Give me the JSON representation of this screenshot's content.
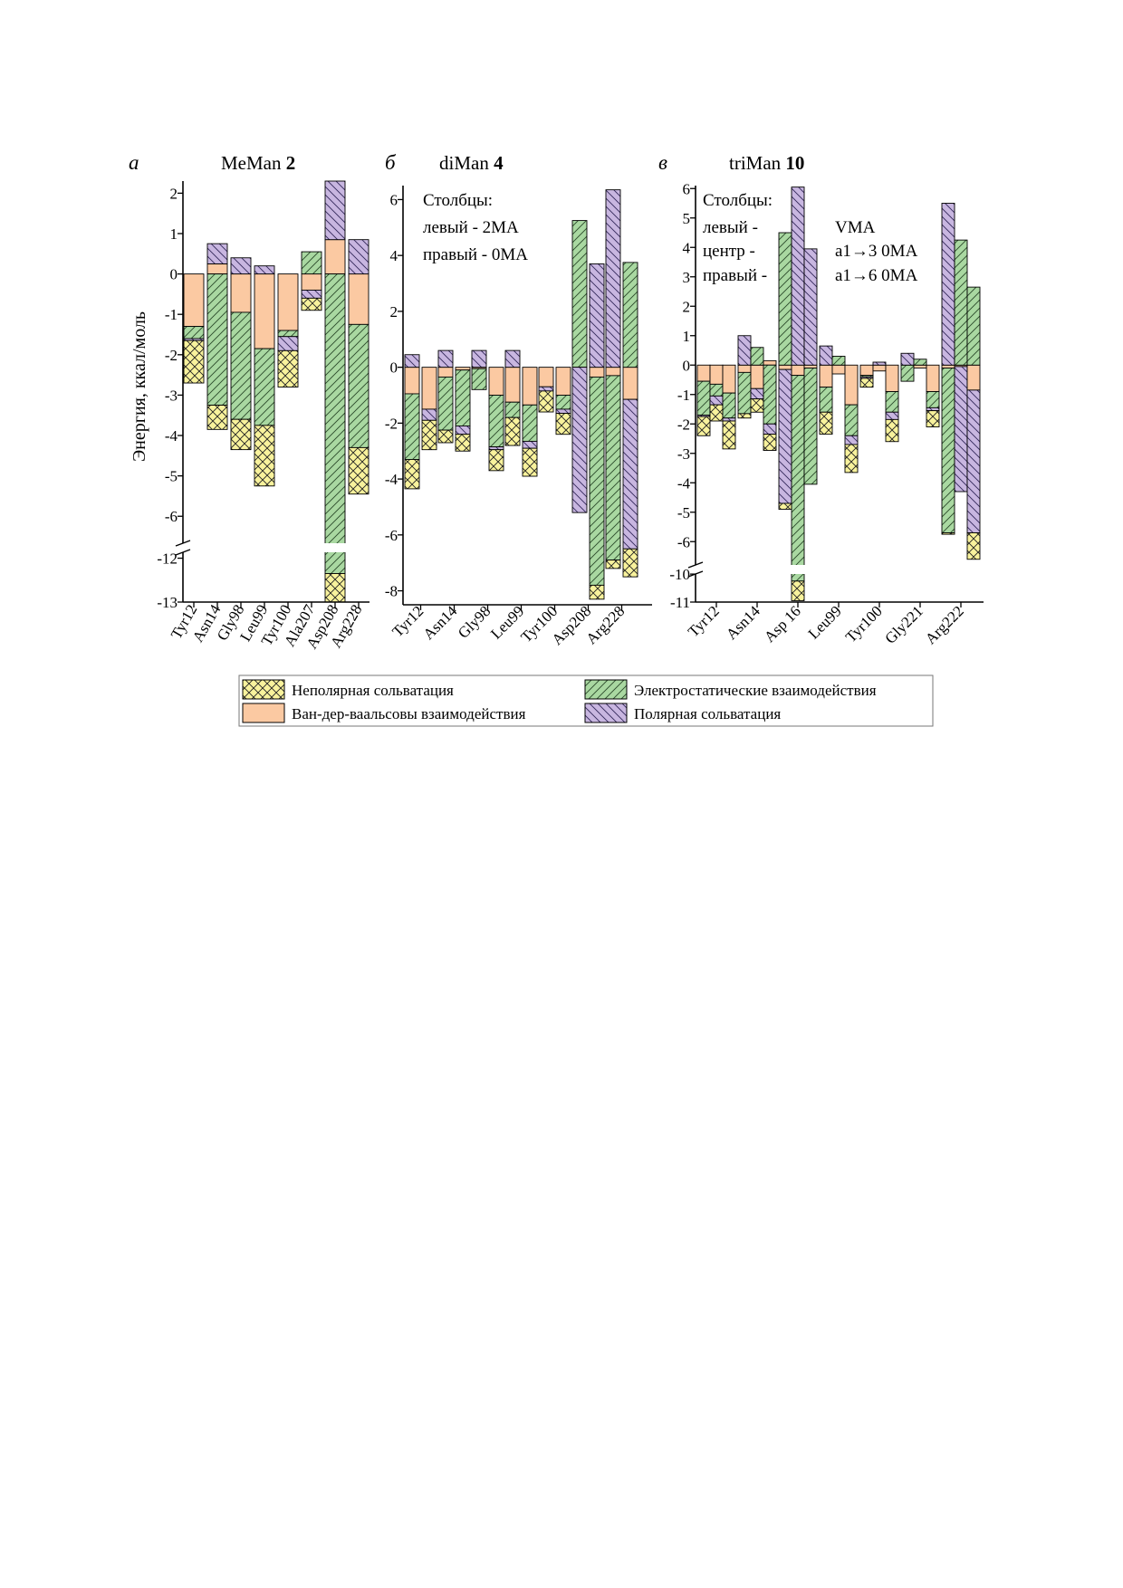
{
  "legend": [
    {
      "key": "nonpolar",
      "label": "Неполярная сольватация",
      "color": "#f8f29c",
      "pattern": "crosshatch"
    },
    {
      "key": "electro",
      "label": "Электростатические взаимодействия",
      "color": "#a9d8a1",
      "pattern": "diag-up"
    },
    {
      "key": "vdw",
      "label": "Ван-дер-ваальсовы взаимодействия",
      "color": "#fbc9a2",
      "pattern": "none"
    },
    {
      "key": "polar",
      "label": "Полярная сольватация",
      "color": "#c8b6e0",
      "pattern": "diag-down"
    }
  ],
  "ylabel": "Энергия, ккал/моль",
  "chart_data": [
    {
      "type": "bar",
      "panel": "а",
      "title": "MeMan",
      "title_bold": "2",
      "ylabel": "Энергия, ккал/моль",
      "ylim": [
        -13,
        2.3
      ],
      "axis_break": [
        -6.6,
        -11.7
      ],
      "yticks": [
        "2",
        "1",
        "0",
        "-1",
        "-2",
        "-3",
        "-4",
        "-5",
        "-6",
        "-12",
        "-13"
      ],
      "categories": [
        "Tyr12",
        "Asn14",
        "Gly98",
        "Leu99",
        "Tyr100",
        "Ala207",
        "Asp208",
        "Arg228"
      ],
      "bars_per_category": 1,
      "bars": [
        {
          "category": "Tyr12",
          "vdw": -1.3,
          "electro": -0.3,
          "polar": -0.05,
          "nonpolar": -1.05
        },
        {
          "category": "Asn14",
          "vdw": 0.25,
          "polar": 0.5,
          "electro": -3.25,
          "nonpolar": -0.6
        },
        {
          "category": "Gly98",
          "vdw": -0.95,
          "electro": -2.65,
          "polar": 0.4,
          "nonpolar": -0.75
        },
        {
          "category": "Leu99",
          "vdw": -1.85,
          "electro": -1.9,
          "polar": 0.2,
          "nonpolar": -1.5
        },
        {
          "category": "Tyr100",
          "vdw": -1.4,
          "electro": -0.15,
          "polar": -0.35,
          "nonpolar": -0.9
        },
        {
          "category": "Ala207",
          "electro": 0.55,
          "vdw": -0.4,
          "polar": -0.2,
          "nonpolar": -0.3
        },
        {
          "category": "Asp208",
          "vdw": 0.85,
          "polar": 1.45,
          "electro": -12.35,
          "nonpolar": -0.65
        },
        {
          "category": "Arg228",
          "polar": 0.85,
          "vdw": -1.25,
          "electro": -3.05,
          "nonpolar": -1.15
        }
      ]
    },
    {
      "type": "bar",
      "panel": "б",
      "title": "diMan",
      "title_bold": "4",
      "ylim": [
        -8.5,
        6.5
      ],
      "yticks": [
        "6",
        "4",
        "2",
        "0",
        "-2",
        "-4",
        "-6",
        "-8"
      ],
      "categories": [
        "Tyr12",
        "Asn14",
        "Gly98",
        "Leu99",
        "Tyr100",
        "Asp208",
        "Arg228"
      ],
      "bars_per_category": 2,
      "annotation": [
        "Столбцы:",
        "левый - 2MA",
        "правый - 0MA"
      ],
      "bars": [
        {
          "category": "Tyr12",
          "vdw": -0.95,
          "electro": -2.35,
          "polar": 0.45,
          "nonpolar": -1.05
        },
        {
          "category": "Tyr12",
          "vdw": -1.5,
          "polar": -0.4,
          "electro": 0,
          "nonpolar": -1.05
        },
        {
          "category": "Asn14",
          "vdw": -0.35,
          "electro": -1.9,
          "polar": 0.6,
          "nonpolar": -0.45
        },
        {
          "category": "Asn14",
          "vdw": -0.1,
          "electro": -2.0,
          "polar": -0.3,
          "nonpolar": -0.6
        },
        {
          "category": "Gly98",
          "vdw": -0.05,
          "electro": -0.75,
          "polar": 0.6,
          "nonpolar": 0
        },
        {
          "category": "Gly98",
          "vdw": -1.0,
          "electro": -1.85,
          "polar": -0.1,
          "nonpolar": -0.75
        },
        {
          "category": "Leu99",
          "vdw": -1.25,
          "electro": -0.55,
          "polar": 0.6,
          "nonpolar": -1.0
        },
        {
          "category": "Leu99",
          "vdw": -1.35,
          "electro": -1.3,
          "polar": -0.25,
          "nonpolar": -1.0
        },
        {
          "category": "Tyr100",
          "vdw": -0.7,
          "polar": -0.15,
          "nonpolar": -0.75,
          "electro": 0
        },
        {
          "category": "Tyr100",
          "vdw": -1.0,
          "electro": -0.5,
          "polar": -0.15,
          "nonpolar": -0.75
        },
        {
          "category": "Asp208",
          "electro": 5.25,
          "polar": -5.2,
          "vdw": 0,
          "nonpolar": 0
        },
        {
          "category": "Asp208",
          "polar": 3.7,
          "vdw": -0.35,
          "electro": -7.45,
          "nonpolar": -0.5
        },
        {
          "category": "Arg228",
          "polar": 6.35,
          "vdw": -0.3,
          "electro": -6.6,
          "nonpolar": -0.3
        },
        {
          "category": "Arg228",
          "electro": 3.75,
          "vdw": -1.15,
          "polar": -5.35,
          "nonpolar": -1.0
        }
      ]
    },
    {
      "type": "bar",
      "panel": "в",
      "title": "triMan",
      "title_bold": "10",
      "ylim": [
        -11,
        6.1
      ],
      "axis_break": [
        -6.7,
        -9.9
      ],
      "yticks": [
        "6",
        "5",
        "4",
        "3",
        "2",
        "1",
        "0",
        "-1",
        "-2",
        "-3",
        "-4",
        "-5",
        "-6",
        "-10",
        "-11"
      ],
      "categories": [
        "Tyr12",
        "Asn14",
        "Asp 16",
        "Leu99",
        "Tyr100",
        "Gly221",
        "Arg222"
      ],
      "bars_per_category": 3,
      "annotation": [
        "Столбцы:",
        "левый -",
        "центр -",
        "правый -",
        "VMA",
        "a1→3 0MA",
        "a1→6 0MA"
      ],
      "bars": [
        {
          "category": "Tyr12",
          "vdw": -0.55,
          "electro": -1.15,
          "polar": -0.05,
          "nonpolar": -0.65
        },
        {
          "category": "Tyr12",
          "vdw": -0.65,
          "electro": -0.4,
          "polar": -0.3,
          "nonpolar": -0.55
        },
        {
          "category": "Tyr12",
          "vdw": -0.95,
          "electro": -0.85,
          "polar": -0.1,
          "nonpolar": -0.95
        },
        {
          "category": "Asn14",
          "polar": 1.0,
          "vdw": -0.25,
          "electro": -1.4,
          "nonpolar": -0.15
        },
        {
          "category": "Asn14",
          "electro": 0.6,
          "vdw": -0.8,
          "polar": -0.35,
          "nonpolar": -0.45
        },
        {
          "category": "Asn14",
          "vdw": 0.15,
          "electro": -2.0,
          "polar": -0.35,
          "nonpolar": -0.55
        },
        {
          "category": "Asp 16",
          "electro": 4.5,
          "vdw": -0.15,
          "polar": -4.55,
          "nonpolar": -0.2
        },
        {
          "category": "Asp 16",
          "polar": 6.05,
          "vdw": -0.35,
          "electro": -9.9,
          "nonpolar": -0.7
        },
        {
          "category": "Asp 16",
          "polar": 3.95,
          "vdw": -0.1,
          "electro": -3.95,
          "nonpolar": 0
        },
        {
          "category": "Leu99",
          "polar": 0.65,
          "vdw": -0.75,
          "electro": -0.85,
          "nonpolar": -0.75
        },
        {
          "category": "Leu99",
          "electro": 0.3,
          "vdw": -0.3,
          "polar": 0,
          "nonpolar": 0
        },
        {
          "category": "Leu99",
          "vdw": -1.35,
          "electro": -1.05,
          "polar": -0.3,
          "nonpolar": -0.95
        },
        {
          "category": "Tyr100",
          "vdw": -0.35,
          "electro": -0.05,
          "polar": -0.05,
          "nonpolar": -0.3
        },
        {
          "category": "Tyr100",
          "polar": 0.1,
          "vdw": -0.2,
          "electro": 0,
          "nonpolar": 0
        },
        {
          "category": "Tyr100",
          "vdw": -0.9,
          "electro": -0.7,
          "polar": -0.25,
          "nonpolar": -0.75
        },
        {
          "category": "Gly221",
          "polar": 0.4,
          "electro": -0.55,
          "vdw": 0,
          "nonpolar": 0
        },
        {
          "category": "Gly221",
          "electro": 0.2,
          "vdw": -0.1,
          "polar": 0,
          "nonpolar": 0
        },
        {
          "category": "Gly221",
          "vdw": -0.9,
          "electro": -0.55,
          "polar": -0.1,
          "nonpolar": -0.55
        },
        {
          "category": "Arg222",
          "polar": 5.5,
          "vdw": -0.1,
          "electro": -5.6,
          "nonpolar": -0.05
        },
        {
          "category": "Arg222",
          "electro": 4.25,
          "vdw": -0.05,
          "polar": -4.25,
          "nonpolar": 0
        },
        {
          "category": "Arg222",
          "electro": 2.65,
          "vdw": -0.85,
          "polar": -4.85,
          "nonpolar": -0.9
        }
      ]
    }
  ]
}
